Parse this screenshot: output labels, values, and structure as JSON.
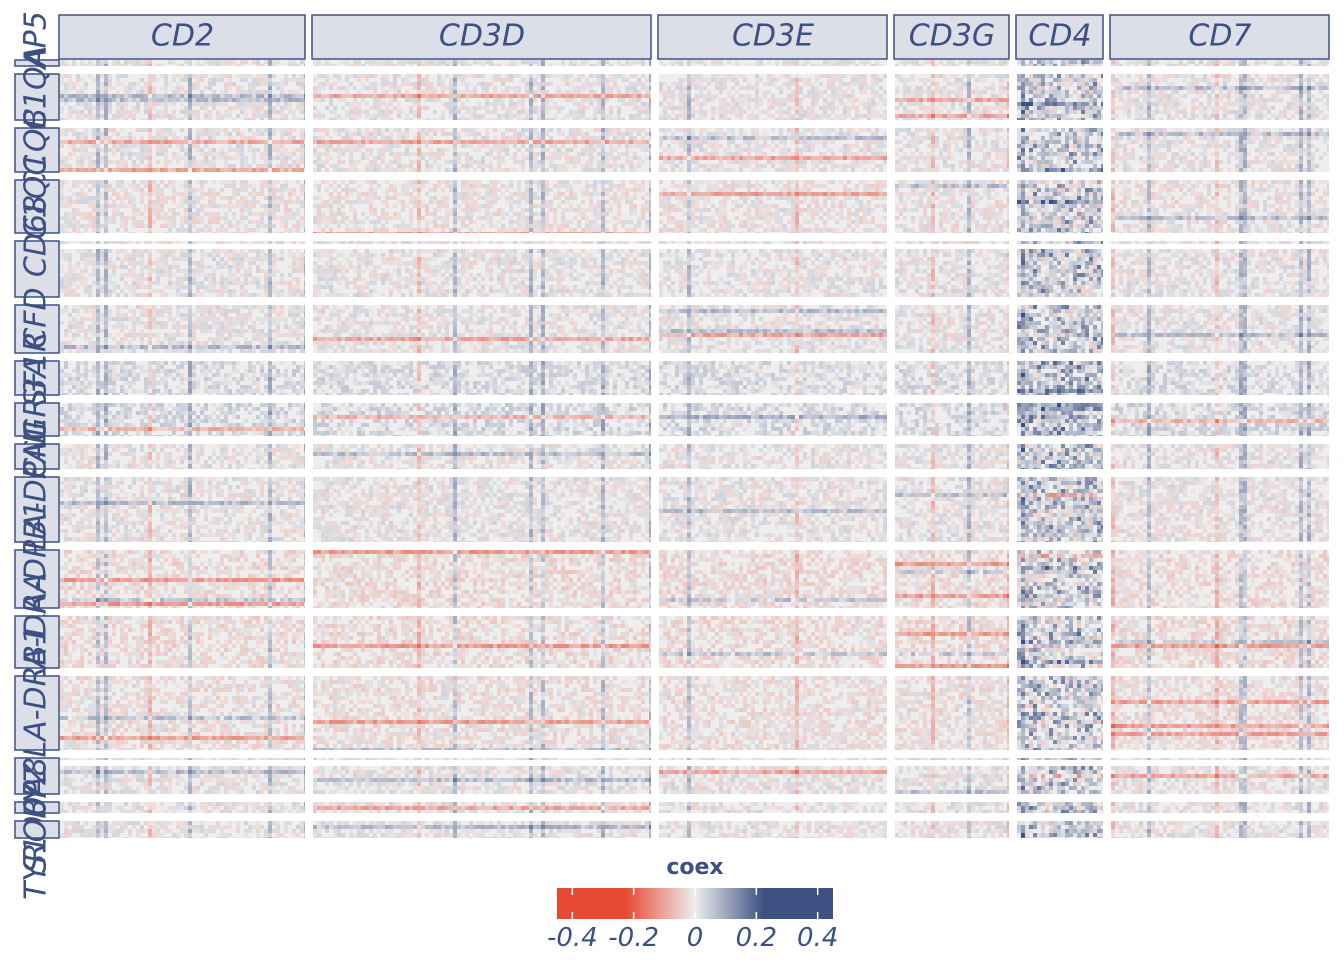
{
  "chart_data": {
    "type": "heatmap",
    "column_facets": [
      "CD2",
      "CD3D",
      "CD3E",
      "CD3G",
      "CD4",
      "CD7"
    ],
    "row_facets": [
      "AP5",
      "C1QA",
      "C1QB",
      "C1QC",
      "CD68",
      "CFD",
      "CSF1R",
      "FCGR3A",
      "FCN1",
      "HLA-DPA1",
      "HLA-DPB1",
      "HLA-DRA",
      "HLA-DRB1",
      "LYZ",
      "S100A8",
      "TYROBP"
    ],
    "fill_variable": "coex",
    "fill_limits": [
      -0.45,
      0.45
    ],
    "fill_colors": {
      "low": "#e64a35",
      "mid": "#eeeeee",
      "high": "#3c5082"
    },
    "legend": {
      "title": "coex",
      "ticks": [
        -0.4,
        -0.2,
        0,
        0.2,
        0.4
      ],
      "tick_labels": [
        "-0.4",
        "-0.2",
        "0",
        "0.2",
        "0.4"
      ],
      "position": "bottom"
    }
  }
}
